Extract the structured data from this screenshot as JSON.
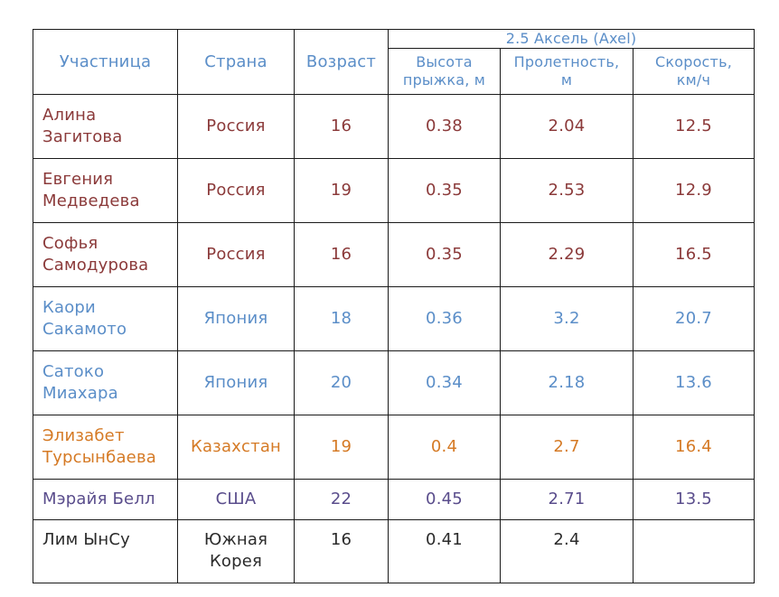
{
  "header": {
    "participant": "Участница",
    "country": "Страна",
    "age": "Возраст",
    "group": "2.5 Аксель (Axel)",
    "height": [
      "Высота",
      "прыжка, м"
    ],
    "distance": [
      "Пролетность,",
      "м"
    ],
    "speed": [
      "Скорость,",
      "км/ч"
    ]
  },
  "colors": {
    "russia": "#8b3a3a",
    "japan": "#5b8ec8",
    "kazakhstan": "#d57a25",
    "usa": "#5a4d8c",
    "korea": "#2b2b2b",
    "header": "#5b8ec8"
  },
  "rows": [
    {
      "name": [
        "Алина",
        "Загитова"
      ],
      "country": [
        "Россия"
      ],
      "age": "16",
      "height": "0.38",
      "distance": "2.04",
      "speed": "12.5"
    },
    {
      "name": [
        "Евгения",
        "Медведева"
      ],
      "country": [
        "Россия"
      ],
      "age": "19",
      "height": "0.35",
      "distance": "2.53",
      "speed": "12.9"
    },
    {
      "name": [
        "Софья",
        "Самодурова"
      ],
      "country": [
        "Россия"
      ],
      "age": "16",
      "height": "0.35",
      "distance": "2.29",
      "speed": "16.5"
    },
    {
      "name": [
        "Каори",
        "Сакамото"
      ],
      "country": [
        "Япония"
      ],
      "age": "18",
      "height": "0.36",
      "distance": "3.2",
      "speed": "20.7"
    },
    {
      "name": [
        "Сатоко",
        "Миахара"
      ],
      "country": [
        "Япония"
      ],
      "age": "20",
      "height": "0.34",
      "distance": "2.18",
      "speed": "13.6"
    },
    {
      "name": [
        "Элизабет",
        "Турсынбаева"
      ],
      "country": [
        "Казахстан"
      ],
      "age": "19",
      "height": "0.4",
      "distance": "2.7",
      "speed": "16.4"
    },
    {
      "name": [
        "Мэрайя Белл"
      ],
      "country": [
        "США"
      ],
      "age": "22",
      "height": "0.45",
      "distance": "2.71",
      "speed": "13.5"
    },
    {
      "name": [
        "Лим ЫнСу"
      ],
      "country": [
        "Южная",
        "Корея"
      ],
      "age": "16",
      "height": "0.41",
      "distance": "2.4",
      "speed": ""
    }
  ]
}
